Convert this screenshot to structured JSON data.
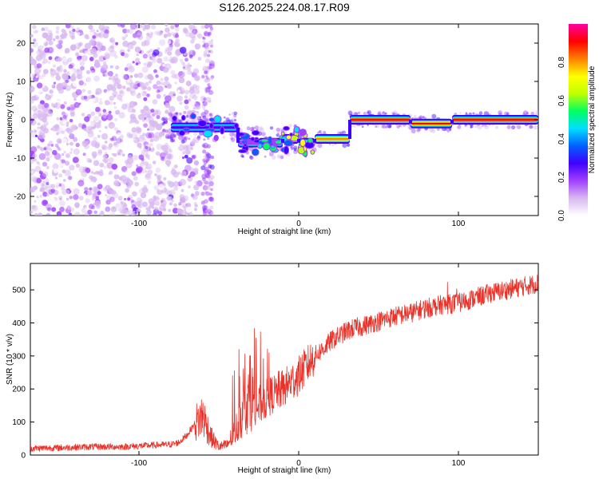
{
  "title": "S126.2025.224.08.17.R09",
  "chart_data": [
    {
      "type": "heatmap",
      "xlabel": "Height of straight line (km)",
      "ylabel": "Frequency (Hz)",
      "xlim": [
        -168,
        150
      ],
      "ylim": [
        -25,
        25
      ],
      "x_ticks": [
        "-100",
        "0",
        "100"
      ],
      "x_tick_values": [
        -100,
        0,
        100
      ],
      "y_ticks": [
        "-20",
        "-10",
        "0",
        "10",
        "20"
      ],
      "y_tick_values": [
        -20,
        -10,
        0,
        10,
        20
      ],
      "colorbar": {
        "label": "Normalized spectral amplitude",
        "range": [
          0,
          1
        ],
        "ticks": [
          "0.0",
          "0.2",
          "0.4",
          "0.6",
          "0.8"
        ],
        "tick_values": [
          0.0,
          0.2,
          0.4,
          0.6,
          0.8
        ],
        "colormap": [
          "#ffffff",
          "#d8b8f0",
          "#a040ff",
          "#4000ff",
          "#0060ff",
          "#00e0ff",
          "#00ff60",
          "#c0ff00",
          "#ffff00",
          "#ff8000",
          "#ff0000",
          "#ff00a0"
        ]
      },
      "ridge": [
        {
          "x_range": [
            -80,
            -38
          ],
          "freq": -2,
          "amplitude": 0.25
        },
        {
          "x_range": [
            -38,
            -25
          ],
          "freq": -6,
          "amplitude": 0.2
        },
        {
          "x_range": [
            -25,
            -10
          ],
          "freq": -6,
          "amplitude": 0.4
        },
        {
          "x_range": [
            -10,
            0
          ],
          "freq": -5,
          "amplitude": 0.55
        },
        {
          "x_range": [
            0,
            10
          ],
          "freq": -6,
          "amplitude": 0.6
        },
        {
          "x_range": [
            10,
            32
          ],
          "freq": -5,
          "amplitude": 0.85
        },
        {
          "x_range": [
            32,
            70
          ],
          "freq": 0,
          "amplitude": 0.95
        },
        {
          "x_range": [
            70,
            96
          ],
          "freq": -1,
          "amplitude": 0.9
        },
        {
          "x_range": [
            96,
            150
          ],
          "freq": 0,
          "amplitude": 0.95
        }
      ],
      "noise_region": {
        "x_range": [
          -168,
          -62
        ],
        "freq_range": [
          -25,
          25
        ],
        "amplitude": 0.1
      }
    },
    {
      "type": "line",
      "xlabel": "Height of straight line (km)",
      "ylabel": "SNR (10 * v/v)",
      "xlim": [
        -168,
        150
      ],
      "ylim": [
        0,
        580
      ],
      "x_ticks": [
        "-100",
        "0",
        "100"
      ],
      "x_tick_values": [
        -100,
        0,
        100
      ],
      "y_ticks": [
        "0",
        "100",
        "200",
        "300",
        "400",
        "500"
      ],
      "y_tick_values": [
        0,
        100,
        200,
        300,
        400,
        500
      ],
      "series": [
        {
          "color": "#e8322a",
          "x": [
            -168,
            -150,
            -130,
            -110,
            -90,
            -80,
            -75,
            -70,
            -65,
            -60,
            -55,
            -50,
            -45,
            -40,
            -35,
            -30,
            -25,
            -20,
            -15,
            -10,
            -5,
            0,
            5,
            10,
            15,
            20,
            25,
            30,
            35,
            40,
            50,
            60,
            70,
            80,
            90,
            100,
            110,
            120,
            130,
            140,
            150
          ],
          "y": [
            20,
            22,
            25,
            25,
            30,
            32,
            38,
            60,
            95,
            120,
            55,
            25,
            30,
            70,
            130,
            180,
            150,
            170,
            190,
            200,
            220,
            240,
            270,
            300,
            320,
            345,
            360,
            375,
            385,
            390,
            405,
            420,
            430,
            445,
            455,
            460,
            475,
            490,
            500,
            510,
            520
          ]
        }
      ]
    }
  ]
}
